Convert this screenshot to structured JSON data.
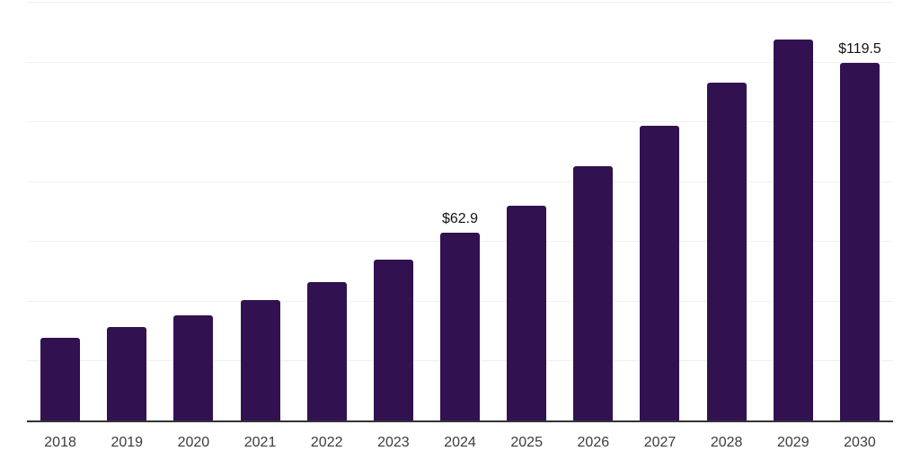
{
  "chart_data": {
    "type": "bar",
    "title": "",
    "xlabel": "",
    "ylabel": "",
    "categories": [
      "2018",
      "2019",
      "2020",
      "2021",
      "2022",
      "2023",
      "2024",
      "2025",
      "2026",
      "2027",
      "2028",
      "2029",
      "2030"
    ],
    "values": [
      27.7,
      31.3,
      35.3,
      40.4,
      46.4,
      53.7,
      62.9,
      71.9,
      85.1,
      98.5,
      112.9,
      127.5,
      119.5
    ],
    "data_labels": {
      "2024": "$62.9",
      "2030": "$119.5"
    },
    "ylim": [
      0,
      140
    ],
    "gridline_step": 20,
    "grid": true,
    "legend": false,
    "y_axis_tick_labels_visible": false
  },
  "colors": {
    "bar": "#321150",
    "grid": "#f0f0f1",
    "axis": "#333333",
    "tick_label": "#3c3c3c",
    "data_label": "#141414",
    "background": "#ffffff"
  }
}
